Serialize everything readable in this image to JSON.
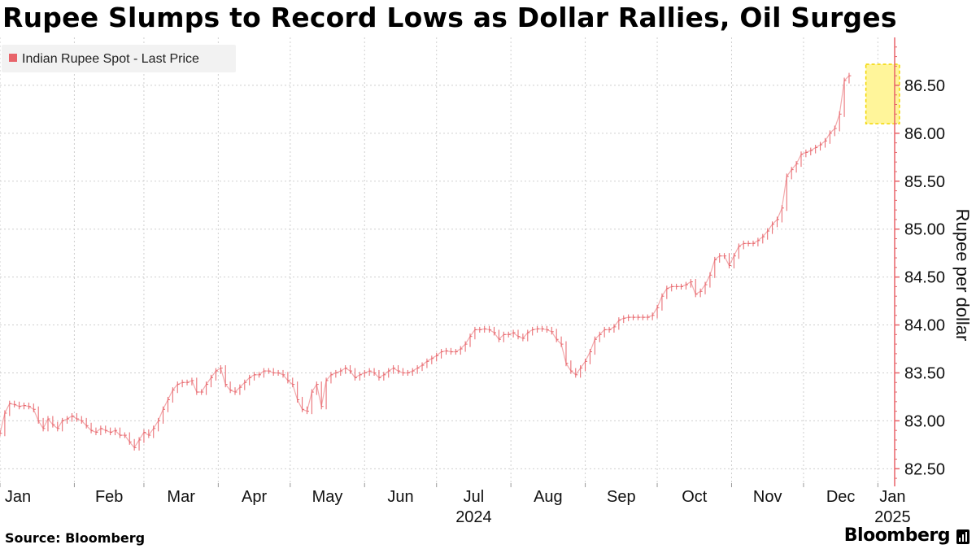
{
  "title": "Rupee Slumps to Record Lows as Dollar Rallies, Oil Surges",
  "source": "Source: Bloomberg",
  "brand": "Bloomberg",
  "colors": {
    "series": "#e8646a",
    "axis": "#e8646a",
    "grid": "#cfcfcf",
    "highlight_fill": "#fff59a",
    "highlight_border": "#f2d600",
    "legend_bg": "#f2f2f2"
  },
  "chart_data": {
    "type": "line",
    "legend": [
      "Indian Rupee Spot - Last Price"
    ],
    "ylabel": "Rupee per dollar",
    "ylim": [
      82.35,
      87.0
    ],
    "yticks": [
      82.5,
      83.0,
      83.5,
      84.0,
      84.5,
      85.0,
      85.5,
      86.0,
      86.5
    ],
    "ytick_labels": [
      "82.50",
      "83.00",
      "83.50",
      "84.00",
      "84.50",
      "85.00",
      "85.50",
      "86.00",
      "86.50"
    ],
    "xlim": [
      0,
      373
    ],
    "xticks": [
      {
        "label": "Jan",
        "day": 0
      },
      {
        "label": "Feb",
        "day": 31
      },
      {
        "label": "Mar",
        "day": 60
      },
      {
        "label": "Apr",
        "day": 91
      },
      {
        "label": "May",
        "day": 121
      },
      {
        "label": "Jun",
        "day": 152
      },
      {
        "label": "Jul",
        "day": 182
      },
      {
        "label": "Aug",
        "day": 213
      },
      {
        "label": "Sep",
        "day": 244
      },
      {
        "label": "Oct",
        "day": 274
      },
      {
        "label": "Nov",
        "day": 305
      },
      {
        "label": "Dec",
        "day": 335
      },
      {
        "label": "Jan",
        "day": 366
      }
    ],
    "year_labels": [
      {
        "label": "2024",
        "day": 182
      },
      {
        "label": "2025",
        "day": 366
      }
    ],
    "highlight": {
      "x0": 361,
      "x1": 375,
      "y0": 86.1,
      "y1": 86.72
    },
    "series": [
      {
        "name": "Indian Rupee Spot - Last Price",
        "points": [
          [
            0,
            82.87
          ],
          [
            2,
            83.08
          ],
          [
            4,
            83.18
          ],
          [
            6,
            83.17
          ],
          [
            8,
            83.15
          ],
          [
            10,
            83.16
          ],
          [
            12,
            83.15
          ],
          [
            14,
            83.12
          ],
          [
            16,
            83.0
          ],
          [
            18,
            82.92
          ],
          [
            20,
            83.02
          ],
          [
            22,
            82.96
          ],
          [
            24,
            82.92
          ],
          [
            26,
            83.0
          ],
          [
            28,
            83.02
          ],
          [
            30,
            83.05
          ],
          [
            32,
            83.02
          ],
          [
            34,
            83.0
          ],
          [
            36,
            82.95
          ],
          [
            38,
            82.9
          ],
          [
            40,
            82.88
          ],
          [
            42,
            82.92
          ],
          [
            44,
            82.9
          ],
          [
            46,
            82.88
          ],
          [
            48,
            82.9
          ],
          [
            50,
            82.85
          ],
          [
            52,
            82.85
          ],
          [
            54,
            82.78
          ],
          [
            56,
            82.72
          ],
          [
            58,
            82.8
          ],
          [
            60,
            82.88
          ],
          [
            62,
            82.85
          ],
          [
            64,
            82.92
          ],
          [
            66,
            83.0
          ],
          [
            68,
            83.12
          ],
          [
            70,
            83.22
          ],
          [
            72,
            83.32
          ],
          [
            74,
            83.38
          ],
          [
            76,
            83.4
          ],
          [
            78,
            83.4
          ],
          [
            80,
            83.42
          ],
          [
            82,
            83.3
          ],
          [
            84,
            83.3
          ],
          [
            86,
            83.38
          ],
          [
            88,
            83.45
          ],
          [
            90,
            83.52
          ],
          [
            92,
            83.55
          ],
          [
            94,
            83.38
          ],
          [
            96,
            83.32
          ],
          [
            98,
            83.3
          ],
          [
            100,
            83.35
          ],
          [
            102,
            83.4
          ],
          [
            104,
            83.45
          ],
          [
            106,
            83.48
          ],
          [
            108,
            83.48
          ],
          [
            110,
            83.52
          ],
          [
            112,
            83.52
          ],
          [
            114,
            83.5
          ],
          [
            116,
            83.5
          ],
          [
            118,
            83.48
          ],
          [
            120,
            83.42
          ],
          [
            122,
            83.38
          ],
          [
            124,
            83.22
          ],
          [
            126,
            83.12
          ],
          [
            128,
            83.1
          ],
          [
            130,
            83.3
          ],
          [
            132,
            83.38
          ],
          [
            134,
            83.15
          ],
          [
            136,
            83.42
          ],
          [
            138,
            83.48
          ],
          [
            140,
            83.5
          ],
          [
            142,
            83.52
          ],
          [
            144,
            83.55
          ],
          [
            146,
            83.52
          ],
          [
            148,
            83.45
          ],
          [
            150,
            83.48
          ],
          [
            152,
            83.5
          ],
          [
            154,
            83.52
          ],
          [
            156,
            83.5
          ],
          [
            158,
            83.45
          ],
          [
            160,
            83.48
          ],
          [
            162,
            83.52
          ],
          [
            164,
            83.55
          ],
          [
            166,
            83.52
          ],
          [
            168,
            83.5
          ],
          [
            170,
            83.5
          ],
          [
            172,
            83.52
          ],
          [
            174,
            83.55
          ],
          [
            176,
            83.58
          ],
          [
            178,
            83.62
          ],
          [
            180,
            83.65
          ],
          [
            182,
            83.68
          ],
          [
            184,
            83.72
          ],
          [
            186,
            83.73
          ],
          [
            188,
            83.72
          ],
          [
            190,
            83.72
          ],
          [
            192,
            83.75
          ],
          [
            194,
            83.8
          ],
          [
            196,
            83.88
          ],
          [
            198,
            83.95
          ],
          [
            200,
            83.95
          ],
          [
            202,
            83.96
          ],
          [
            204,
            83.95
          ],
          [
            206,
            83.92
          ],
          [
            208,
            83.85
          ],
          [
            210,
            83.9
          ],
          [
            212,
            83.9
          ],
          [
            214,
            83.92
          ],
          [
            216,
            83.88
          ],
          [
            218,
            83.86
          ],
          [
            220,
            83.92
          ],
          [
            222,
            83.95
          ],
          [
            224,
            83.96
          ],
          [
            226,
            83.96
          ],
          [
            228,
            83.95
          ],
          [
            230,
            83.93
          ],
          [
            232,
            83.85
          ],
          [
            234,
            83.8
          ],
          [
            236,
            83.6
          ],
          [
            238,
            83.52
          ],
          [
            240,
            83.48
          ],
          [
            242,
            83.55
          ],
          [
            244,
            83.62
          ],
          [
            246,
            83.72
          ],
          [
            248,
            83.85
          ],
          [
            250,
            83.9
          ],
          [
            252,
            83.95
          ],
          [
            254,
            83.95
          ],
          [
            256,
            83.98
          ],
          [
            258,
            84.05
          ],
          [
            260,
            84.07
          ],
          [
            262,
            84.08
          ],
          [
            264,
            84.08
          ],
          [
            266,
            84.08
          ],
          [
            268,
            84.08
          ],
          [
            270,
            84.08
          ],
          [
            272,
            84.1
          ],
          [
            274,
            84.18
          ],
          [
            276,
            84.3
          ],
          [
            278,
            84.38
          ],
          [
            280,
            84.4
          ],
          [
            282,
            84.4
          ],
          [
            284,
            84.4
          ],
          [
            286,
            84.42
          ],
          [
            288,
            84.45
          ],
          [
            290,
            84.32
          ],
          [
            292,
            84.35
          ],
          [
            294,
            84.42
          ],
          [
            296,
            84.52
          ],
          [
            298,
            84.68
          ],
          [
            300,
            84.72
          ],
          [
            302,
            84.72
          ],
          [
            304,
            84.62
          ],
          [
            306,
            84.72
          ],
          [
            308,
            84.82
          ],
          [
            310,
            84.85
          ],
          [
            312,
            84.85
          ],
          [
            314,
            84.85
          ],
          [
            316,
            84.88
          ],
          [
            318,
            84.92
          ],
          [
            320,
            84.98
          ],
          [
            322,
            85.05
          ],
          [
            324,
            85.1
          ],
          [
            326,
            85.22
          ],
          [
            328,
            85.55
          ],
          [
            330,
            85.62
          ],
          [
            332,
            85.68
          ],
          [
            334,
            85.78
          ],
          [
            336,
            85.8
          ],
          [
            338,
            85.82
          ],
          [
            340,
            85.85
          ],
          [
            342,
            85.88
          ],
          [
            344,
            85.92
          ],
          [
            346,
            86.0
          ],
          [
            348,
            86.05
          ],
          [
            350,
            86.2
          ],
          [
            352,
            86.55
          ],
          [
            354,
            86.6
          ]
        ]
      }
    ]
  }
}
